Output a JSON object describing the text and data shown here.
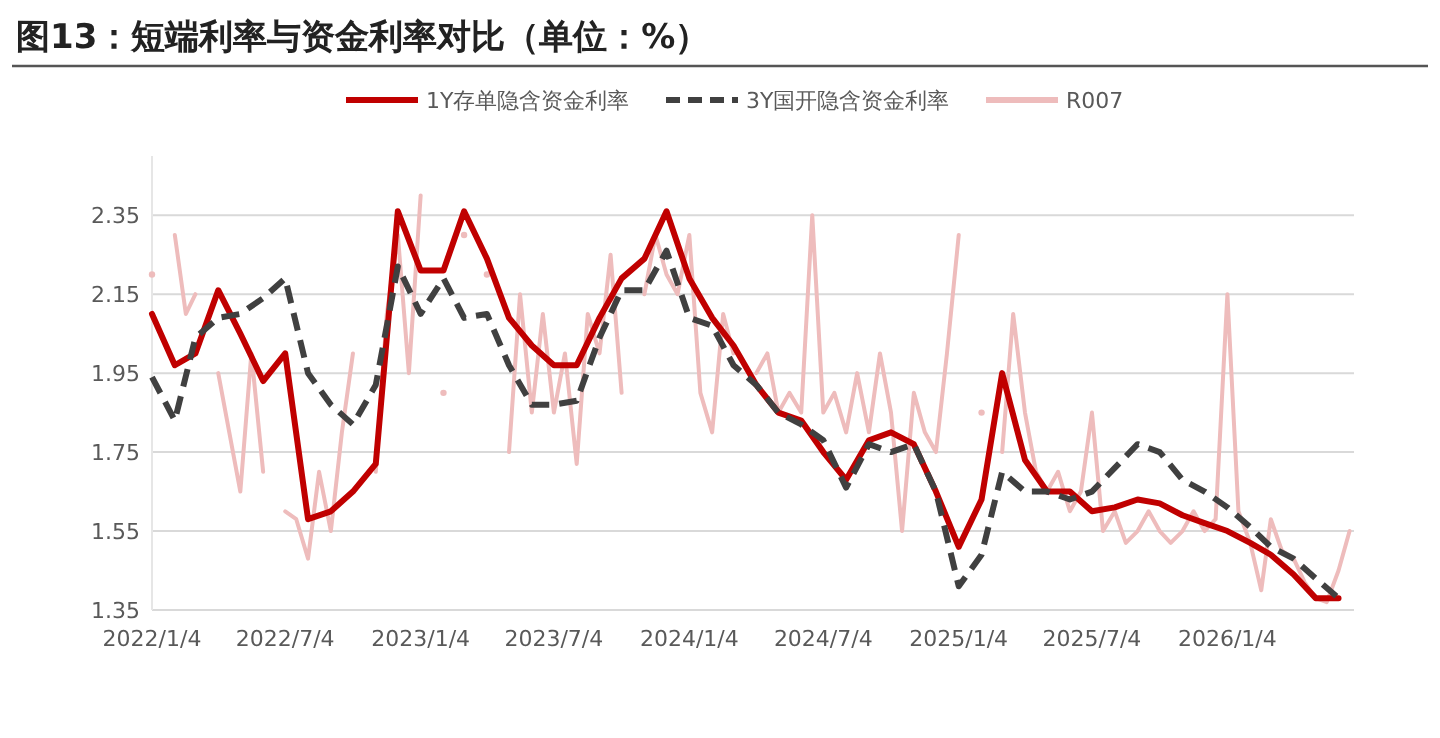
{
  "chart_data": {
    "type": "line",
    "title": "图13：短端利率与资金利率对比（单位：%）",
    "x": [
      "2022-01-04",
      "2022-02-04",
      "2022-03-04",
      "2022-04-04",
      "2022-05-04",
      "2022-06-04",
      "2022-07-04",
      "2022-08-04",
      "2022-09-04",
      "2022-10-04",
      "2022-11-04",
      "2022-12-04",
      "2023-01-04",
      "2023-02-04",
      "2023-03-04",
      "2023-04-04",
      "2023-05-04",
      "2023-06-04",
      "2023-07-04",
      "2023-08-04",
      "2023-09-04",
      "2023-10-04",
      "2023-11-04",
      "2023-12-04",
      "2024-01-04",
      "2024-02-04",
      "2024-03-04",
      "2024-04-04",
      "2024-05-04",
      "2024-06-04",
      "2024-07-04",
      "2024-08-04",
      "2024-09-04",
      "2024-10-04",
      "2024-11-04",
      "2024-12-04",
      "2025-01-04",
      "2025-02-04",
      "2025-03-04",
      "2025-04-04",
      "2025-05-04",
      "2025-06-04",
      "2025-07-04",
      "2025-08-04",
      "2025-09-04",
      "2025-10-04",
      "2025-11-04",
      "2025-12-04",
      "2026-01-04",
      "2026-02-04",
      "2026-03-04",
      "2026-04-04",
      "2026-05-04",
      "2026-06-04"
    ],
    "series": [
      {
        "name": "1Y存单隐含资金利率",
        "color": "#c00000",
        "line_style": "solid",
        "values": [
          2.1,
          1.97,
          2.0,
          2.16,
          2.05,
          1.93,
          2.0,
          1.58,
          1.6,
          1.65,
          1.72,
          2.36,
          2.21,
          2.21,
          2.36,
          2.24,
          2.09,
          2.02,
          1.97,
          1.97,
          2.09,
          2.19,
          2.24,
          2.36,
          2.19,
          2.09,
          2.02,
          1.92,
          1.85,
          1.83,
          1.75,
          1.68,
          1.78,
          1.8,
          1.77,
          1.65,
          1.51,
          1.63,
          1.95,
          1.73,
          1.65,
          1.65,
          1.6,
          1.61,
          1.63,
          1.62,
          1.59,
          1.57,
          1.55,
          1.52,
          1.49,
          1.44,
          1.38,
          1.38
        ]
      },
      {
        "name": "3Y国开隐含资金利率",
        "color": "#404040",
        "line_style": "dashed",
        "values": [
          1.94,
          1.83,
          2.04,
          2.09,
          2.1,
          2.14,
          2.19,
          1.95,
          1.87,
          1.82,
          1.92,
          2.22,
          2.1,
          2.19,
          2.09,
          2.1,
          1.97,
          1.87,
          1.87,
          1.88,
          2.04,
          2.16,
          2.16,
          2.26,
          2.09,
          2.07,
          1.97,
          1.92,
          1.85,
          1.82,
          1.78,
          1.66,
          1.77,
          1.75,
          1.77,
          1.65,
          1.41,
          1.49,
          1.7,
          1.65,
          1.65,
          1.63,
          1.65,
          1.71,
          1.77,
          1.75,
          1.68,
          1.65,
          1.61,
          1.56,
          1.51,
          1.48,
          1.43,
          1.38
        ]
      },
      {
        "name": "R007",
        "color": "#eebcbc",
        "line_style": "solid",
        "x": [
          "2022-01-04",
          "2022-01-19",
          "2022-02-04",
          "2022-02-19",
          "2022-03-04",
          "2022-03-19",
          "2022-04-04",
          "2022-04-19",
          "2022-05-04",
          "2022-05-19",
          "2022-06-04",
          "2022-06-19",
          "2022-07-04",
          "2022-07-19",
          "2022-08-04",
          "2022-08-19",
          "2022-09-04",
          "2022-09-19",
          "2022-10-04",
          "2022-10-19",
          "2022-11-04",
          "2022-11-19",
          "2022-12-04",
          "2022-12-19",
          "2023-01-04",
          "2023-01-19",
          "2023-02-04",
          "2023-02-19",
          "2023-03-04",
          "2023-03-19",
          "2023-04-04",
          "2023-04-19",
          "2023-05-04",
          "2023-05-19",
          "2023-06-04",
          "2023-06-19",
          "2023-07-04",
          "2023-07-19",
          "2023-08-04",
          "2023-08-19",
          "2023-09-04",
          "2023-09-19",
          "2023-10-04",
          "2023-10-19",
          "2023-11-04",
          "2023-11-19",
          "2023-12-04",
          "2023-12-19",
          "2024-01-04",
          "2024-01-19",
          "2024-02-04",
          "2024-02-19",
          "2024-03-04",
          "2024-03-19",
          "2024-04-04",
          "2024-04-19",
          "2024-05-04",
          "2024-05-19",
          "2024-06-04",
          "2024-06-19",
          "2024-07-04",
          "2024-07-19",
          "2024-08-04",
          "2024-08-19",
          "2024-09-04",
          "2024-09-19",
          "2024-10-04",
          "2024-10-19",
          "2024-11-04",
          "2024-11-19",
          "2024-12-04",
          "2024-12-19",
          "2025-01-04",
          "2025-01-19",
          "2025-02-04",
          "2025-02-19",
          "2025-03-04",
          "2025-03-19",
          "2025-04-04",
          "2025-04-19",
          "2025-05-04",
          "2025-05-19",
          "2025-06-04",
          "2025-06-19",
          "2025-07-04",
          "2025-07-19",
          "2025-08-04",
          "2025-08-19",
          "2025-09-04",
          "2025-09-19",
          "2025-10-04",
          "2025-10-19",
          "2025-11-04",
          "2025-11-19",
          "2025-12-04",
          "2025-12-19",
          "2026-01-04",
          "2026-01-19",
          "2026-02-04",
          "2026-02-19",
          "2026-03-04",
          "2026-03-19",
          "2026-04-04",
          "2026-04-19",
          "2026-05-04",
          "2026-05-19",
          "2026-06-04",
          "2026-06-19"
        ],
        "values": [
          2.2,
          null,
          2.3,
          2.1,
          2.15,
          null,
          1.95,
          1.8,
          1.65,
          2.0,
          1.7,
          null,
          1.6,
          1.58,
          1.48,
          1.7,
          1.55,
          1.8,
          2.0,
          null,
          1.7,
          2.1,
          2.3,
          1.95,
          2.4,
          null,
          1.9,
          null,
          2.3,
          null,
          2.2,
          null,
          1.75,
          2.15,
          1.85,
          2.1,
          1.85,
          2.0,
          1.72,
          2.1,
          2.0,
          2.25,
          1.9,
          null,
          2.15,
          2.3,
          2.2,
          2.15,
          2.3,
          1.9,
          1.8,
          2.1,
          2.0,
          null,
          1.95,
          2.0,
          1.85,
          1.9,
          1.85,
          2.35,
          1.85,
          1.9,
          1.8,
          1.95,
          1.8,
          2.0,
          1.85,
          1.55,
          1.9,
          1.8,
          1.75,
          2.0,
          2.3,
          null,
          1.85,
          null,
          1.75,
          2.1,
          1.85,
          1.7,
          1.65,
          1.7,
          1.6,
          1.65,
          1.85,
          1.55,
          1.6,
          1.52,
          1.55,
          1.6,
          1.55,
          1.52,
          1.55,
          1.6,
          1.55,
          1.58,
          2.15,
          1.6,
          1.52,
          1.4,
          1.58,
          1.5,
          1.48,
          1.42,
          1.38,
          1.37,
          1.45,
          1.55
        ]
      }
    ],
    "xlim": [
      "2022-01-04",
      "2026-06-25"
    ],
    "xticks": [
      {
        "value": "2022-01-04",
        "label": "2022/1/4"
      },
      {
        "value": "2022-07-04",
        "label": "2022/7/4"
      },
      {
        "value": "2023-01-04",
        "label": "2023/1/4"
      },
      {
        "value": "2023-07-04",
        "label": "2023/7/4"
      },
      {
        "value": "2024-01-04",
        "label": "2024/1/4"
      },
      {
        "value": "2024-07-04",
        "label": "2024/7/4"
      },
      {
        "value": "2025-01-04",
        "label": "2025/1/4"
      },
      {
        "value": "2025-07-04",
        "label": "2025/7/4"
      },
      {
        "value": "2026-01-04",
        "label": "2026/1/4"
      }
    ],
    "ylim": [
      1.35,
      2.5
    ],
    "yticks": [
      1.35,
      1.55,
      1.75,
      1.95,
      2.15,
      2.35
    ],
    "grid": "y",
    "legend": "top"
  }
}
